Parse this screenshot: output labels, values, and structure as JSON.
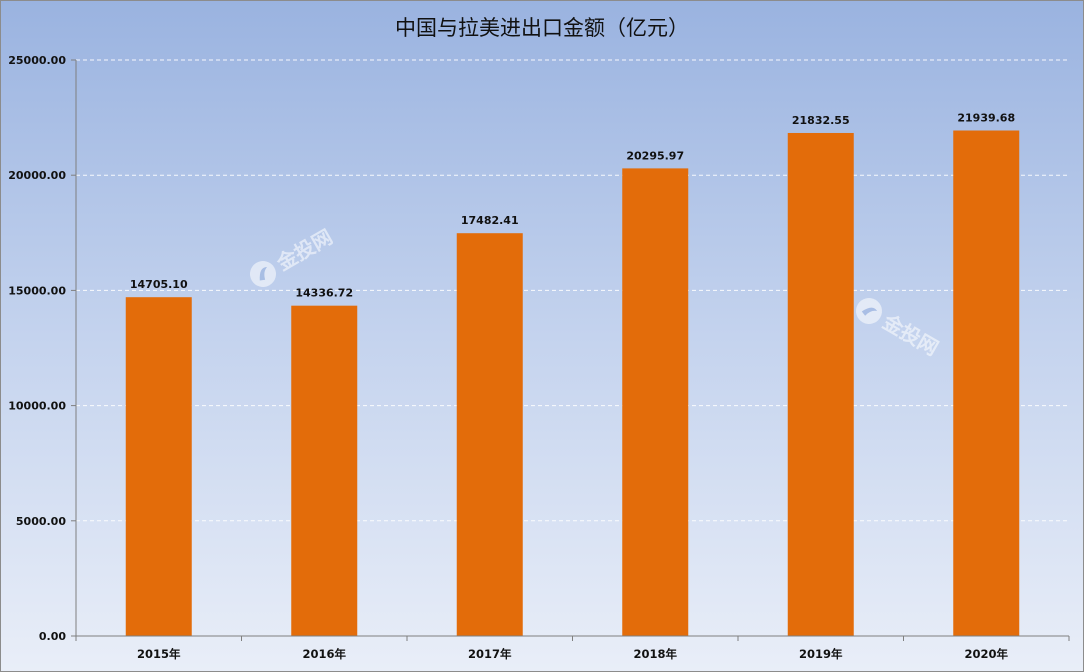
{
  "chart_data": {
    "type": "bar",
    "title": "中国与拉美进出口金额（亿元）",
    "categories": [
      "2015年",
      "2016年",
      "2017年",
      "2018年",
      "2019年",
      "2020年"
    ],
    "values": [
      14705.1,
      14336.72,
      17482.41,
      20295.97,
      21832.55,
      21939.68
    ],
    "value_labels": [
      "14705.10",
      "14336.72",
      "17482.41",
      "20295.97",
      "21832.55",
      "21939.68"
    ],
    "ylim": [
      0,
      25000
    ],
    "yticks": [
      "0.00",
      "5000.00",
      "10000.00",
      "15000.00",
      "20000.00",
      "25000.00"
    ],
    "ytick_values": [
      0,
      5000,
      10000,
      15000,
      20000,
      25000
    ],
    "grid": "dashed horizontal",
    "legend": "none",
    "xlabel": "",
    "ylabel": ""
  },
  "colors": {
    "bar": "#e36c0a",
    "gridline": "#ffffff",
    "axis": "#7f7f7f"
  },
  "watermark": {
    "text": "金投网",
    "icon": "logo-icon"
  }
}
